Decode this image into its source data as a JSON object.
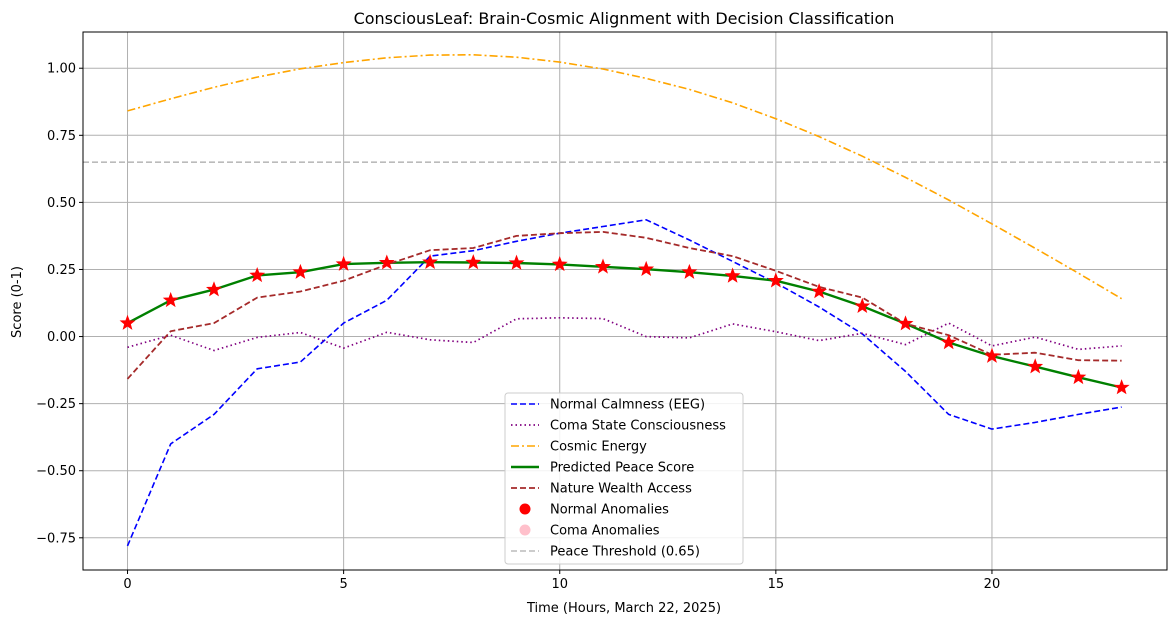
{
  "chart_data": {
    "type": "line",
    "title": "ConsciousLeaf: Brain-Cosmic Alignment with Decision Classification",
    "xlabel": "Time (Hours, March 22, 2025)",
    "ylabel": "Score (0-1)",
    "xlim": [
      -1.03,
      24.05
    ],
    "ylim": [
      -0.87,
      1.135
    ],
    "xticks": [
      0,
      5,
      10,
      15,
      20
    ],
    "yticks": [
      -0.75,
      -0.5,
      -0.25,
      0.0,
      0.25,
      0.5,
      0.75,
      1.0
    ],
    "ytick_labels": [
      "−0.75",
      "−0.50",
      "−0.25",
      "0.00",
      "0.25",
      "0.50",
      "0.75",
      "1.00"
    ],
    "grid": true,
    "legend_position": "lower center",
    "x": [
      0,
      1,
      2,
      3,
      4,
      5,
      6,
      7,
      8,
      9,
      10,
      11,
      12,
      13,
      14,
      15,
      16,
      17,
      18,
      19,
      20,
      21,
      22,
      23
    ],
    "series": [
      {
        "name": "Normal Calmness (EEG)",
        "color": "#0000ff",
        "style": "dashed",
        "width": 1.6,
        "values": [
          -0.78,
          -0.4,
          -0.29,
          -0.12,
          -0.095,
          0.05,
          0.135,
          0.3,
          0.32,
          0.355,
          0.385,
          0.41,
          0.435,
          0.36,
          0.28,
          0.2,
          0.11,
          0.01,
          -0.13,
          -0.29,
          -0.345,
          -0.32,
          -0.29,
          -0.263
        ]
      },
      {
        "name": "Coma State Consciousness",
        "color": "#800080",
        "style": "dotted",
        "width": 1.7,
        "values": [
          -0.04,
          0.005,
          -0.052,
          -0.003,
          0.015,
          -0.043,
          0.016,
          -0.012,
          -0.022,
          0.066,
          0.07,
          0.067,
          0.0,
          -0.005,
          0.047,
          0.018,
          -0.015,
          0.012,
          -0.03,
          0.05,
          -0.035,
          -0.002,
          -0.048,
          -0.035
        ]
      },
      {
        "name": "Cosmic Energy",
        "color": "#ffa500",
        "style": "dashdot",
        "width": 1.6,
        "values": [
          0.841,
          0.886,
          0.929,
          0.967,
          0.998,
          1.021,
          1.039,
          1.049,
          1.05,
          1.041,
          1.023,
          0.997,
          0.962,
          0.921,
          0.871,
          0.812,
          0.745,
          0.672,
          0.593,
          0.509,
          0.42,
          0.329,
          0.236,
          0.141
        ]
      },
      {
        "name": "Predicted Peace Score",
        "color": "#008000",
        "style": "solid",
        "width": 2.4,
        "values": [
          0.05,
          0.135,
          0.175,
          0.228,
          0.24,
          0.27,
          0.275,
          0.277,
          0.276,
          0.274,
          0.269,
          0.26,
          0.251,
          0.24,
          0.226,
          0.208,
          0.168,
          0.113,
          0.048,
          -0.022,
          -0.073,
          -0.112,
          -0.152,
          -0.19
        ]
      },
      {
        "name": "Nature Wealth Access",
        "color": "#a52a2a",
        "style": "dashed",
        "width": 1.8,
        "values": [
          -0.158,
          0.02,
          0.05,
          0.145,
          0.168,
          0.208,
          0.268,
          0.322,
          0.33,
          0.375,
          0.385,
          0.39,
          0.368,
          0.33,
          0.3,
          0.245,
          0.185,
          0.145,
          0.048,
          0.005,
          -0.068,
          -0.06,
          -0.088,
          -0.09
        ]
      }
    ],
    "scatter": [
      {
        "name": "Normal Anomalies",
        "color": "#ff0000",
        "marker": "star",
        "points_on": "Predicted Peace Score"
      },
      {
        "name": "Coma Anomalies",
        "color": "#ffc0cb",
        "marker": "circle",
        "points_on": null
      }
    ],
    "hlines": [
      {
        "name": "Peace Threshold (0.65)",
        "y": 0.65,
        "color": "#bbbbbb",
        "style": "dashed"
      }
    ]
  }
}
